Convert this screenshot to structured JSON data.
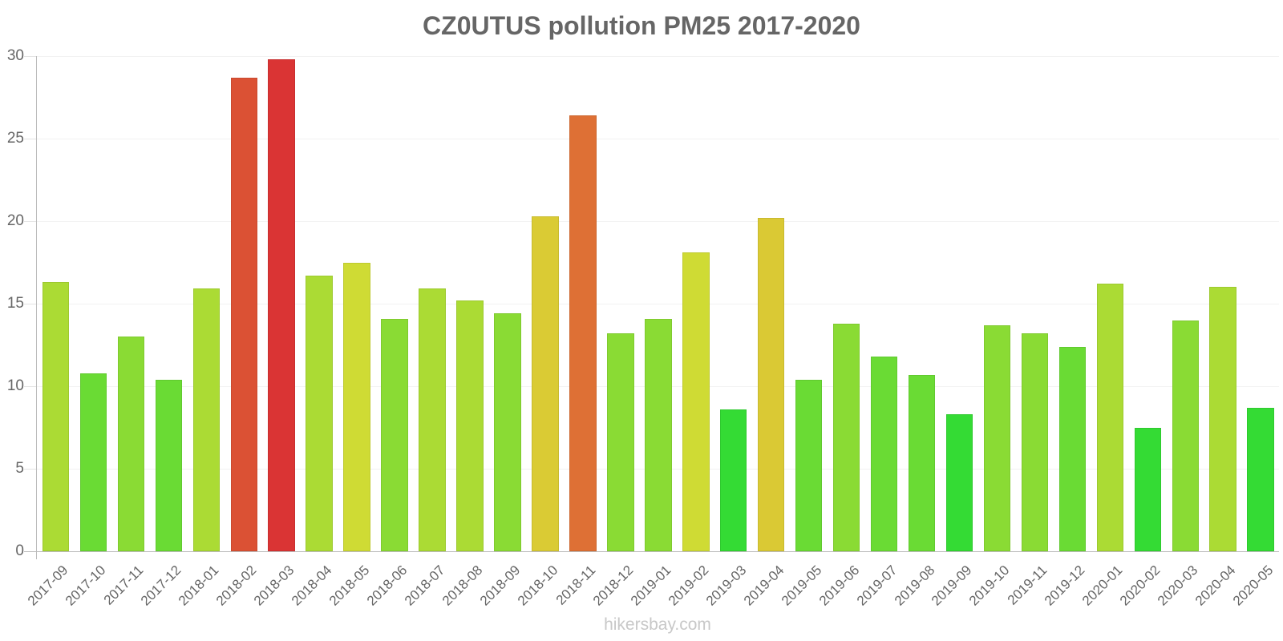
{
  "title": "CZ0UTUS pollution PM25 2017-2020",
  "watermark": "hikersbay.com",
  "y_axis": {
    "ticks": [
      {
        "value": 0,
        "label": "0"
      },
      {
        "value": 5,
        "label": "5"
      },
      {
        "value": 10,
        "label": "10"
      },
      {
        "value": 15,
        "label": "15"
      },
      {
        "value": 20,
        "label": "20"
      },
      {
        "value": 25,
        "label": "25"
      },
      {
        "value": 30,
        "label": "30"
      }
    ]
  },
  "chart_data": {
    "type": "bar",
    "title": "CZ0UTUS pollution PM25 2017-2020",
    "xlabel": "",
    "ylabel": "",
    "ylim": [
      0,
      30
    ],
    "yticks": [
      0,
      5,
      10,
      15,
      20,
      25,
      30
    ],
    "grid": true,
    "legend": null,
    "categories": [
      "2017-09",
      "2017-10",
      "2017-11",
      "2017-12",
      "2018-01",
      "2018-02",
      "2018-03",
      "2018-04",
      "2018-05",
      "2018-06",
      "2018-07",
      "2018-08",
      "2018-09",
      "2018-10",
      "2018-11",
      "2018-12",
      "2019-01",
      "2019-02",
      "2019-03",
      "2019-04",
      "2019-05",
      "2019-06",
      "2019-07",
      "2019-08",
      "2019-09",
      "2019-10",
      "2019-11",
      "2019-12",
      "2020-01",
      "2020-02",
      "2020-03",
      "2020-04",
      "2020-05"
    ],
    "values": [
      16.3,
      10.8,
      13.0,
      10.4,
      15.9,
      28.7,
      29.8,
      16.7,
      17.5,
      14.1,
      15.9,
      15.2,
      14.4,
      20.3,
      26.4,
      13.2,
      14.1,
      18.1,
      8.6,
      20.2,
      10.4,
      13.8,
      11.8,
      10.7,
      8.3,
      13.7,
      13.2,
      12.4,
      16.2,
      7.5,
      14.0,
      16.0,
      8.7
    ],
    "colors": [
      "#abdb34",
      "#6adb34",
      "#8adb34",
      "#6adb34",
      "#abdb34",
      "#db5134",
      "#da3434",
      "#abdb34",
      "#cfdb34",
      "#8adb34",
      "#abdb34",
      "#abdb34",
      "#8adb34",
      "#dacb34",
      "#de7035",
      "#8adb34",
      "#8adb34",
      "#cfdb34",
      "#34db34",
      "#dac934",
      "#6adb34",
      "#8adb34",
      "#6adb34",
      "#6adb34",
      "#34db34",
      "#8adb34",
      "#8adb34",
      "#6adb34",
      "#abdb34",
      "#34db34",
      "#8adb34",
      "#abdb34",
      "#34db34"
    ]
  }
}
